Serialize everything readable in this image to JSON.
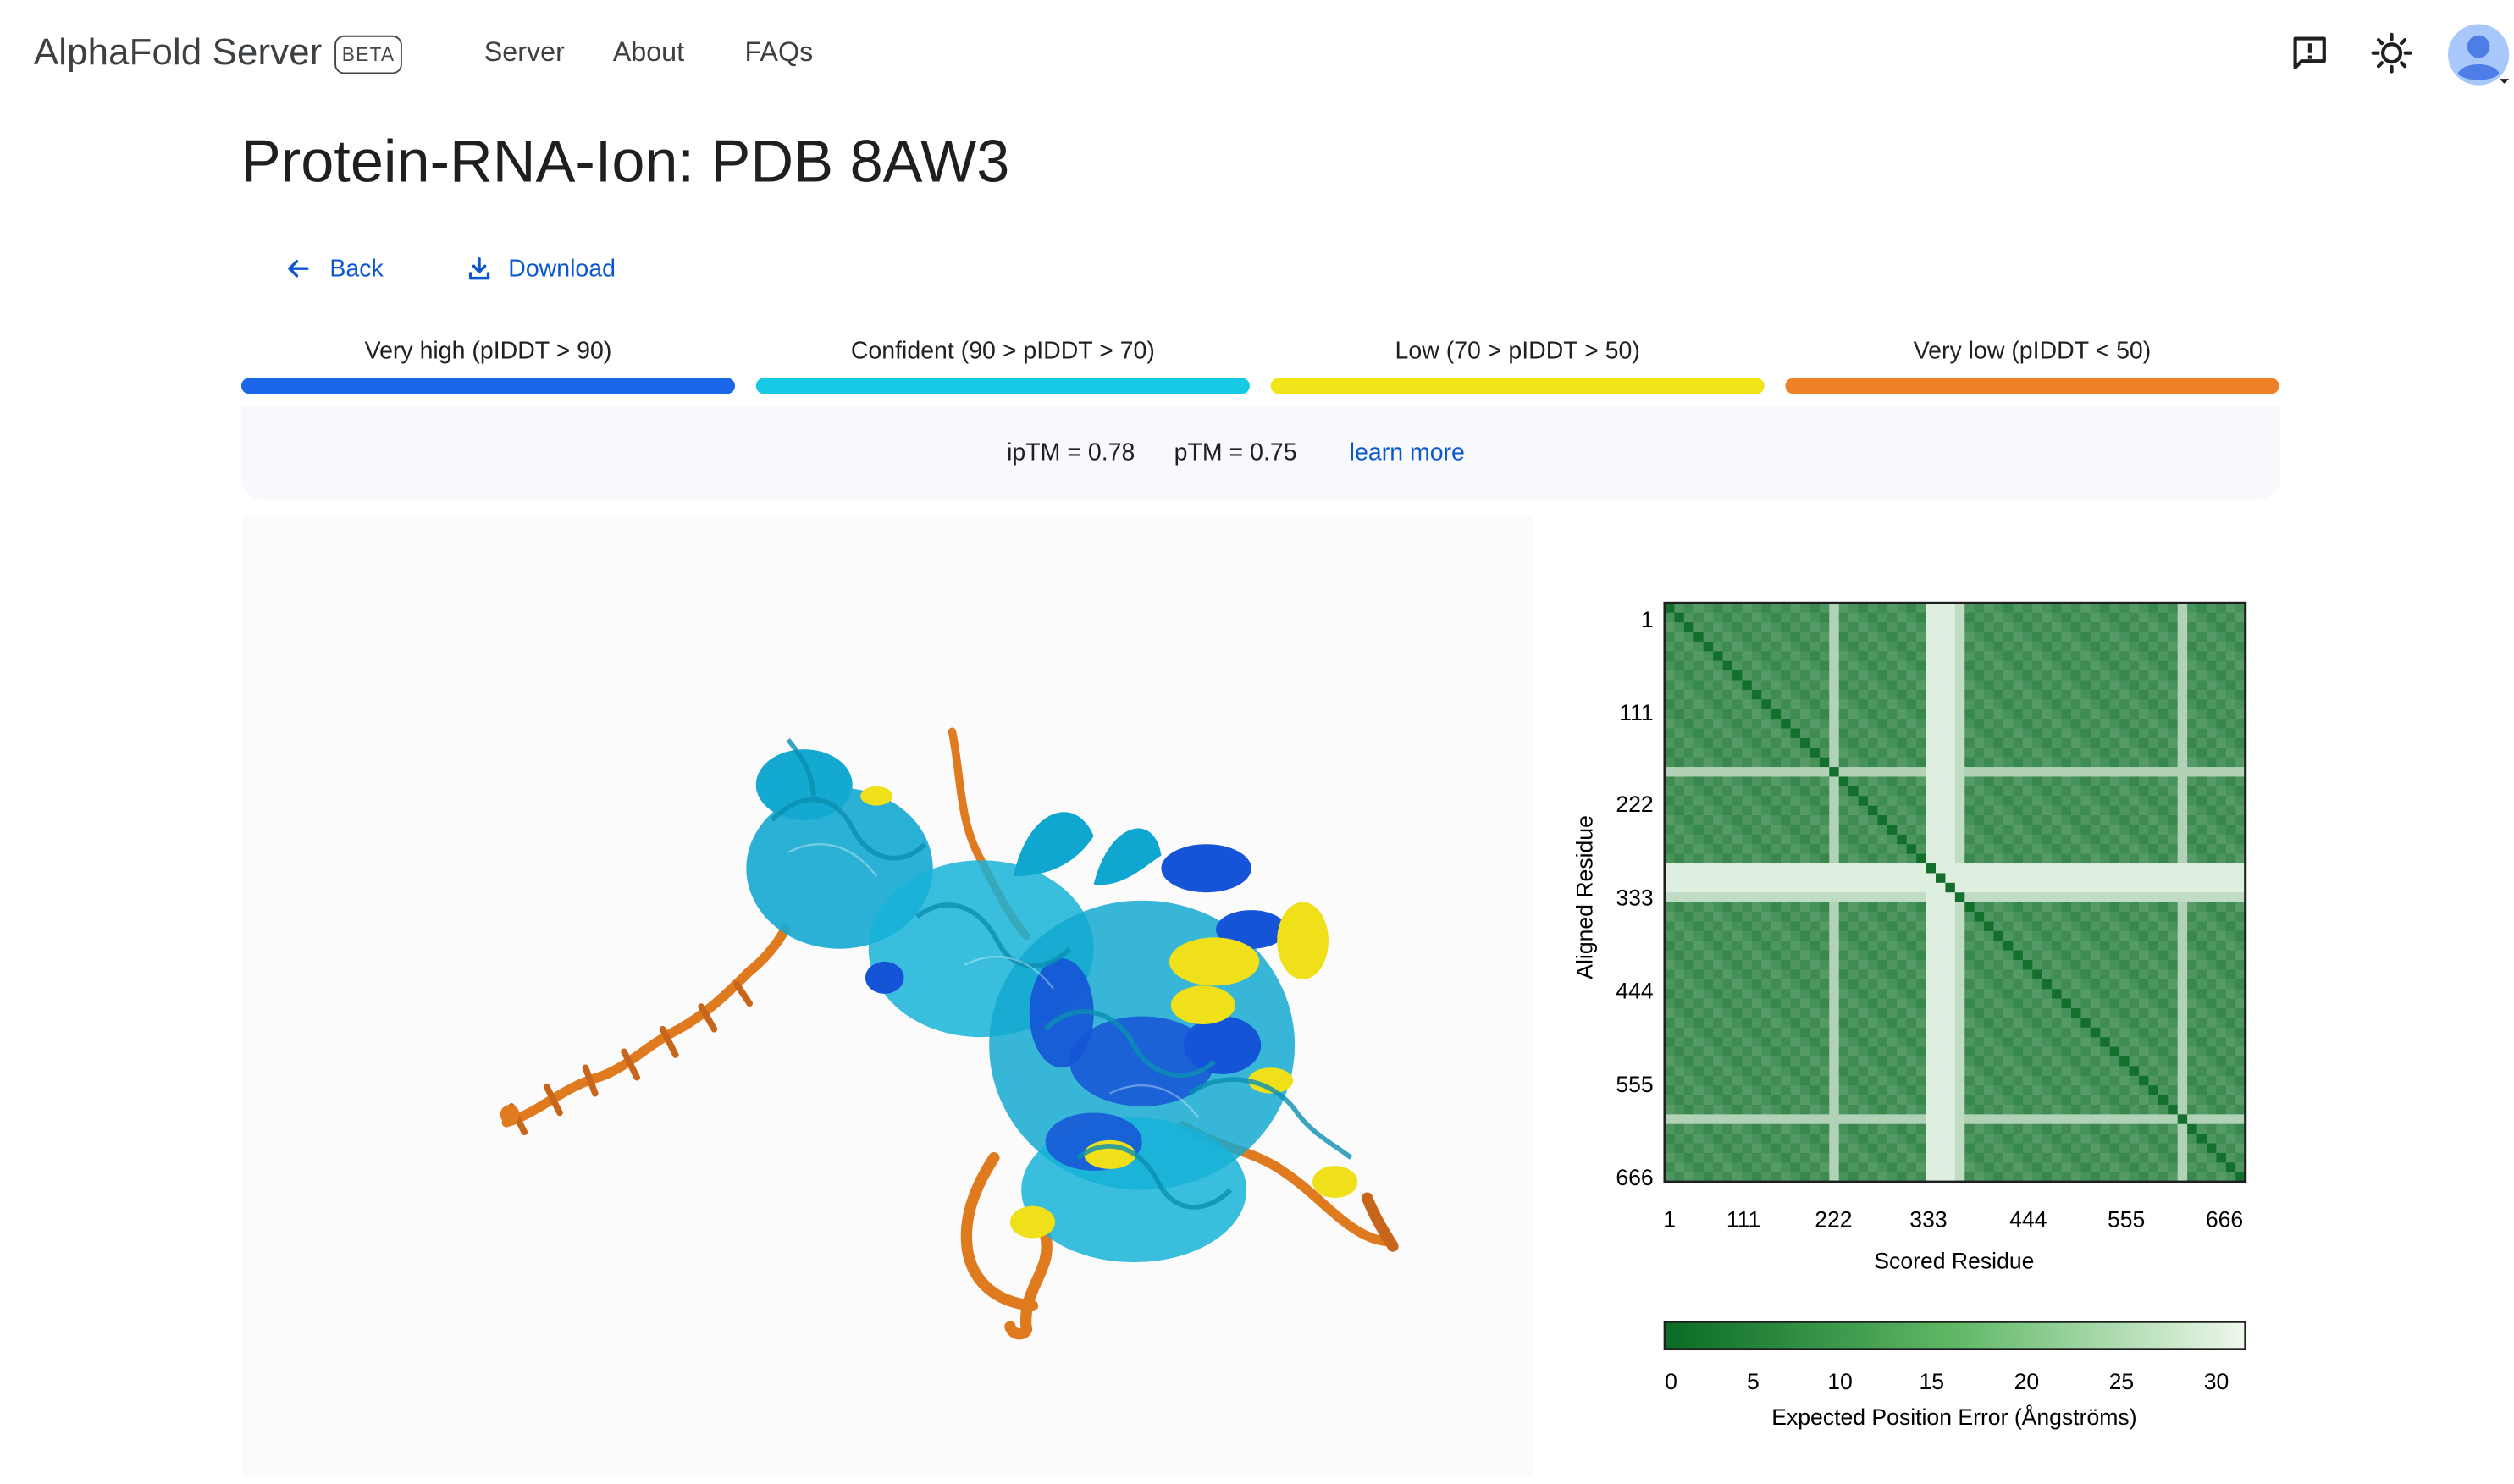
{
  "header": {
    "brand": "AlphaFold Server",
    "badge": "BETA",
    "nav": [
      "Server",
      "About",
      "FAQs"
    ],
    "icons": [
      "feedback-icon",
      "theme-toggle-icon",
      "account-avatar"
    ]
  },
  "page": {
    "title": "Protein-RNA-Ion: PDB 8AW3",
    "actions": {
      "back": "Back",
      "download": "Download"
    }
  },
  "confidence_legend": [
    {
      "label": "Very high (pIDDT > 90)",
      "color": "#1a66e8"
    },
    {
      "label": "Confident (90 > pIDDT > 70)",
      "color": "#16cae6"
    },
    {
      "label": "Low (70 > pIDDT > 50)",
      "color": "#f1e51a"
    },
    {
      "label": "Very low (pIDDT < 50)",
      "color": "#ef8128"
    }
  ],
  "metrics": {
    "iptm": "ipTM = 0.78",
    "ptm": "pTM = 0.75",
    "learn_more": "learn more"
  },
  "structure_colors": {
    "very_high": "#1554d6",
    "confident": "#14a9d0",
    "low": "#efe01a",
    "very_low": "#e07a1f"
  },
  "chart_data": {
    "type": "heatmap",
    "title": "",
    "xlabel": "Scored Residue",
    "ylabel": "Aligned Residue",
    "x_ticks": [
      "1",
      "111",
      "222",
      "333",
      "444",
      "555",
      "666"
    ],
    "y_ticks": [
      "1",
      "111",
      "222",
      "333",
      "444",
      "555",
      "666"
    ],
    "xlim": [
      1,
      666
    ],
    "ylim": [
      1,
      666
    ],
    "colorbar": {
      "label": "Expected Position Error (Ångströms)",
      "ticks": [
        "0",
        "5",
        "10",
        "15",
        "20",
        "25",
        "30"
      ],
      "range": [
        0,
        30
      ],
      "low_color": "#0a6b25",
      "high_color": "#eef8ec"
    },
    "high_error_residue_bands": [
      {
        "from": 300,
        "to": 330,
        "value": 28
      },
      {
        "from": 185,
        "to": 200,
        "value": 22
      },
      {
        "from": 330,
        "to": 345,
        "value": 24
      },
      {
        "from": 585,
        "to": 600,
        "value": 22
      }
    ],
    "typical_error": 8,
    "diagonal_error": 1
  }
}
